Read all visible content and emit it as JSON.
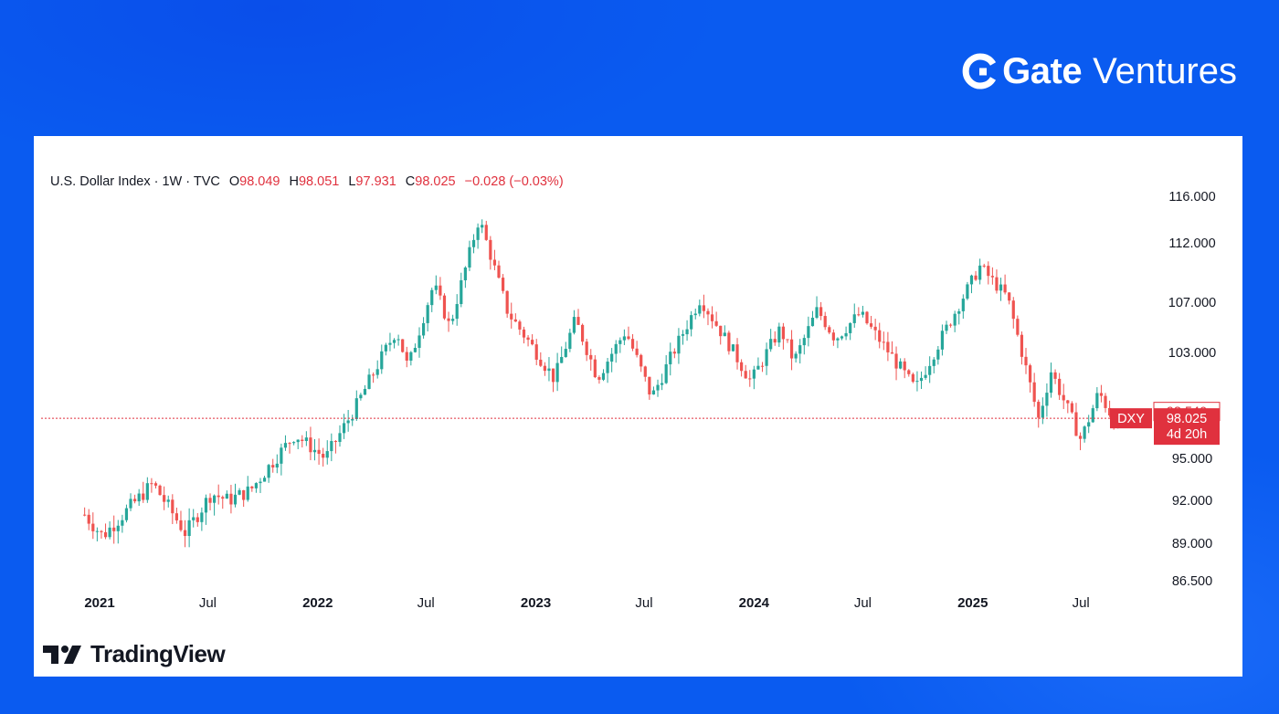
{
  "brand": {
    "name_bold": "Gate",
    "name_light": "Ventures",
    "icon": "gate-logo-icon"
  },
  "footer": {
    "logo_text": "TradingView",
    "icon": "tradingview-logo-icon"
  },
  "legend": {
    "symbol": "U.S. Dollar Index · 1W · TVC",
    "o_label": "O",
    "o_value": "98.049",
    "h_label": "H",
    "h_value": "98.051",
    "l_label": "L",
    "l_value": "97.931",
    "c_label": "C",
    "c_value": "98.025",
    "change": "−0.028 (−0.03%)"
  },
  "price_axis": {
    "labels": [
      "116.000",
      "112.000",
      "107.000",
      "103.000",
      "95.000",
      "92.000",
      "89.000",
      "86.500"
    ],
    "markers": {
      "high": "98.540",
      "current": "98.025",
      "countdown": "4d 20h",
      "symbol_tag": "DXY"
    }
  },
  "time_axis": {
    "labels": [
      {
        "text": "2021",
        "bold": true
      },
      {
        "text": "Jul",
        "bold": false
      },
      {
        "text": "2022",
        "bold": true
      },
      {
        "text": "Jul",
        "bold": false
      },
      {
        "text": "2023",
        "bold": true
      },
      {
        "text": "Jul",
        "bold": false
      },
      {
        "text": "2024",
        "bold": true
      },
      {
        "text": "Jul",
        "bold": false
      },
      {
        "text": "2025",
        "bold": true
      },
      {
        "text": "Jul",
        "bold": false
      }
    ]
  },
  "colors": {
    "up": "#26a69a",
    "down": "#ef5350",
    "accent": "#e0313e",
    "background": "#0a5bf0"
  },
  "chart_data": {
    "type": "candlestick",
    "title": "U.S. Dollar Index · 1W · TVC",
    "interval": "1W",
    "ylim": [
      86.5,
      116
    ],
    "x_start": "2020-12-07",
    "x_end": "2025-09-08",
    "current_price": 98.025,
    "anchors": [
      {
        "date": "2020-12-07",
        "value": 91.0
      },
      {
        "date": "2021-01-06",
        "value": 89.5
      },
      {
        "date": "2021-03-31",
        "value": 93.2
      },
      {
        "date": "2021-05-25",
        "value": 89.7
      },
      {
        "date": "2021-07-07",
        "value": 92.5
      },
      {
        "date": "2021-08-04",
        "value": 92.0
      },
      {
        "date": "2021-09-10",
        "value": 92.7
      },
      {
        "date": "2021-11-24",
        "value": 96.8
      },
      {
        "date": "2022-01-14",
        "value": 95.0
      },
      {
        "date": "2022-03-07",
        "value": 99.0
      },
      {
        "date": "2022-05-13",
        "value": 104.8
      },
      {
        "date": "2022-06-01",
        "value": 101.8
      },
      {
        "date": "2022-07-14",
        "value": 108.5
      },
      {
        "date": "2022-08-10",
        "value": 105.0
      },
      {
        "date": "2022-09-28",
        "value": 114.1
      },
      {
        "date": "2022-11-15",
        "value": 106.2
      },
      {
        "date": "2023-02-01",
        "value": 101.0
      },
      {
        "date": "2023-03-08",
        "value": 105.6
      },
      {
        "date": "2023-04-14",
        "value": 101.1
      },
      {
        "date": "2023-05-31",
        "value": 104.7
      },
      {
        "date": "2023-07-14",
        "value": 99.6
      },
      {
        "date": "2023-10-03",
        "value": 107.3
      },
      {
        "date": "2023-12-27",
        "value": 100.8
      },
      {
        "date": "2024-02-14",
        "value": 104.9
      },
      {
        "date": "2024-03-08",
        "value": 102.3
      },
      {
        "date": "2024-04-16",
        "value": 106.4
      },
      {
        "date": "2024-05-16",
        "value": 104.1
      },
      {
        "date": "2024-06-26",
        "value": 106.1
      },
      {
        "date": "2024-09-27",
        "value": 100.2
      },
      {
        "date": "2025-01-13",
        "value": 110.0
      },
      {
        "date": "2025-02-28",
        "value": 107.4
      },
      {
        "date": "2025-04-21",
        "value": 98.0
      },
      {
        "date": "2025-05-12",
        "value": 101.6
      },
      {
        "date": "2025-07-01",
        "value": 96.4
      },
      {
        "date": "2025-07-31",
        "value": 100.0
      },
      {
        "date": "2025-08-29",
        "value": 97.6
      },
      {
        "date": "2025-09-08",
        "value": 98.025
      }
    ]
  }
}
